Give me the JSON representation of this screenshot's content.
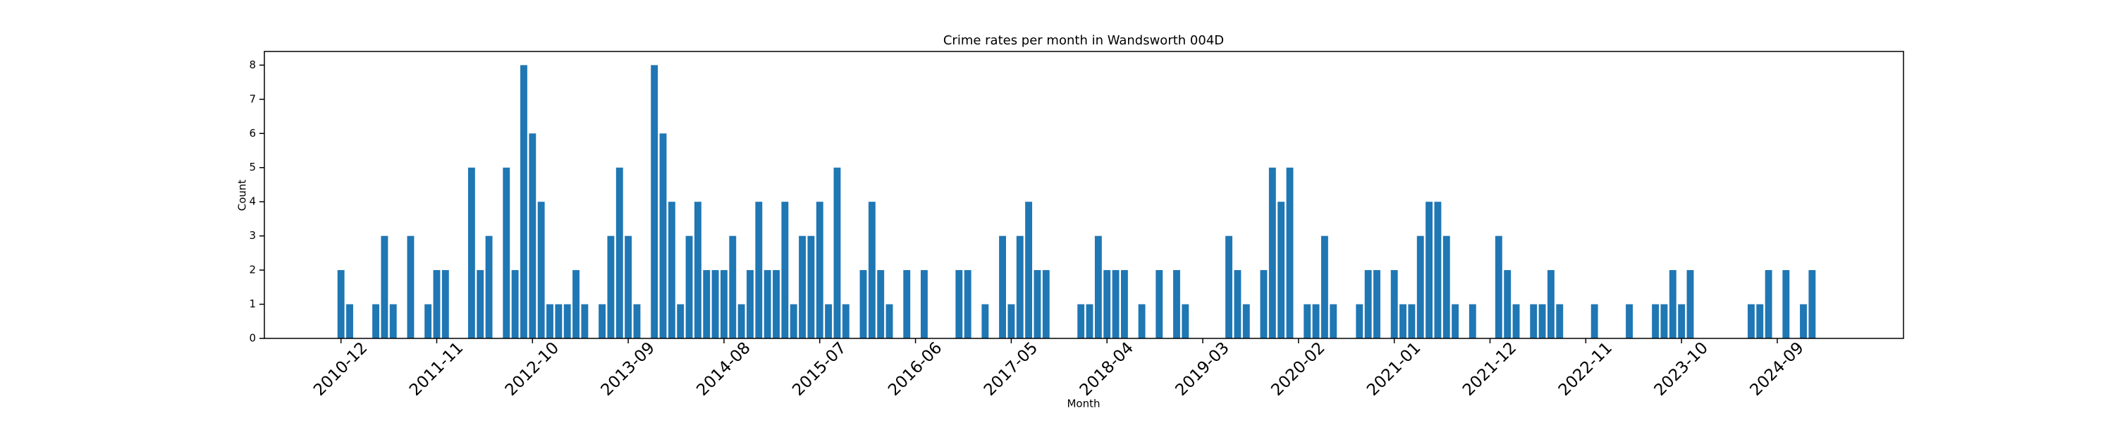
{
  "chart_data": {
    "type": "bar",
    "title": "Crime rates per month in Wandsworth 004D",
    "x_label": "Month",
    "y_label": "Count",
    "color": "#1f77b4",
    "categories": [
      "2010-12",
      null,
      null,
      null,
      null,
      null,
      null,
      null,
      null,
      null,
      null,
      "2011-11",
      null,
      null,
      null,
      null,
      null,
      null,
      null,
      null,
      null,
      null,
      "2012-10",
      null,
      null,
      null,
      null,
      null,
      null,
      null,
      null,
      null,
      null,
      "2013-09",
      null,
      null,
      null,
      null,
      null,
      null,
      null,
      null,
      null,
      null,
      "2014-08",
      null,
      null,
      null,
      null,
      null,
      null,
      null,
      null,
      null,
      null,
      "2015-07",
      null,
      null,
      null,
      null,
      null,
      null,
      null,
      null,
      null,
      null,
      "2016-06",
      null,
      null,
      null,
      null,
      null,
      null,
      null,
      null,
      null,
      null,
      "2017-05",
      null,
      null,
      null,
      null,
      null,
      null,
      null,
      null,
      null,
      null,
      "2018-04",
      null,
      null,
      null,
      null,
      null,
      null,
      null,
      null,
      null,
      null,
      "2019-03",
      null,
      null,
      null,
      null,
      null,
      null,
      null,
      null,
      null,
      null,
      "2020-02",
      null,
      null,
      null,
      null,
      null,
      null,
      null,
      null,
      null,
      null,
      "2021-01",
      null,
      null,
      null,
      null,
      null,
      null,
      null,
      null,
      null,
      null,
      "2021-12",
      null,
      null,
      null,
      null,
      null,
      null,
      null,
      null,
      null,
      null,
      "2022-11",
      null,
      null,
      null,
      null,
      null,
      null,
      null,
      null,
      null,
      null,
      "2023-10",
      null,
      null,
      null,
      null,
      null,
      null,
      null,
      null,
      null,
      null,
      "2024-09",
      null,
      null,
      null,
      null
    ],
    "values": [
      2,
      1,
      0,
      0,
      1,
      3,
      1,
      0,
      3,
      0,
      1,
      2,
      2,
      0,
      0,
      5,
      2,
      3,
      0,
      5,
      2,
      8,
      6,
      4,
      1,
      1,
      1,
      2,
      1,
      0,
      1,
      3,
      5,
      3,
      1,
      0,
      8,
      6,
      4,
      1,
      3,
      4,
      2,
      2,
      2,
      3,
      1,
      2,
      4,
      2,
      2,
      4,
      1,
      3,
      3,
      4,
      1,
      5,
      1,
      0,
      2,
      4,
      2,
      1,
      0,
      2,
      0,
      2,
      0,
      0,
      0,
      2,
      2,
      0,
      1,
      0,
      3,
      1,
      3,
      4,
      2,
      2,
      0,
      0,
      0,
      1,
      1,
      3,
      2,
      2,
      2,
      0,
      1,
      0,
      2,
      0,
      2,
      1,
      0,
      0,
      0,
      0,
      3,
      2,
      1,
      0,
      2,
      5,
      4,
      5,
      0,
      1,
      1,
      3,
      1,
      0,
      0,
      1,
      2,
      2,
      0,
      2,
      1,
      1,
      3,
      4,
      4,
      3,
      1,
      0,
      1,
      0,
      0,
      3,
      2,
      1,
      0,
      1,
      1,
      2,
      1,
      0,
      0,
      0,
      1,
      0,
      0,
      0,
      1,
      0,
      0,
      1,
      1,
      2,
      1,
      2,
      0,
      0,
      0,
      0,
      0,
      0,
      1,
      1,
      2,
      0,
      2,
      0,
      1,
      2
    ],
    "xlim": [
      -8.8,
      179.5
    ],
    "ylim": [
      0,
      8.4
    ],
    "yticks": [
      0,
      1,
      2,
      3,
      4,
      5,
      6,
      7,
      8
    ]
  }
}
